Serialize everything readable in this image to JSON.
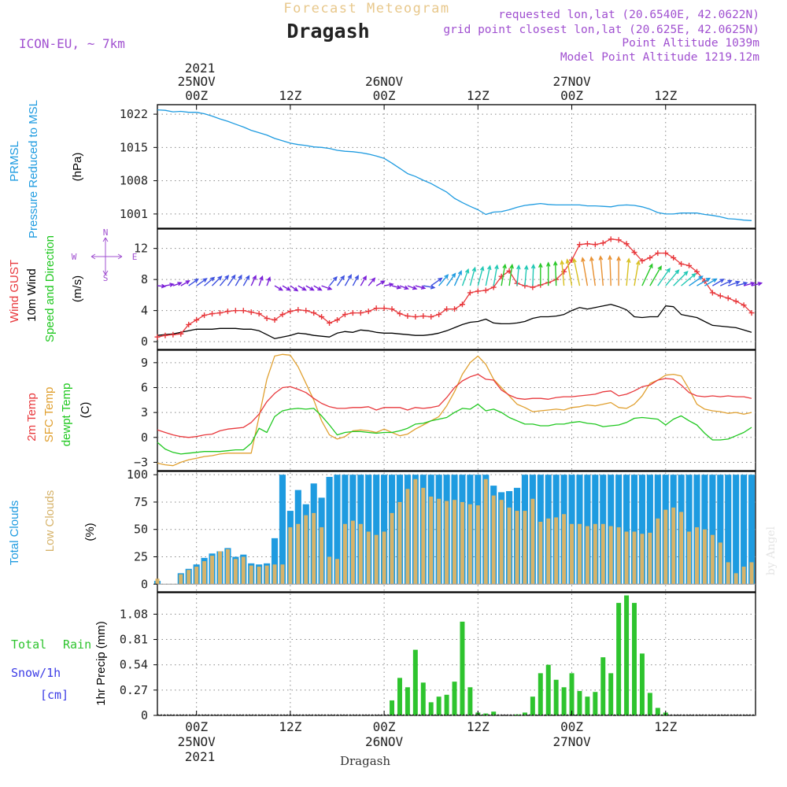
{
  "header": {
    "subtitle": "Forecast Meteogram",
    "title": "Dragash",
    "model": "ICON-EU, ~ 7km",
    "requested": "requested lon,lat (20.6540E, 42.0622N)",
    "grid_point": "grid point closest lon,lat (20.625E, 42.0625N)",
    "point_altitude": "Point Altitude 1039m",
    "model_altitude": "Model Point Altitude 1219.12m",
    "watermark": "by Angel",
    "footer_name": "Dragash"
  },
  "time_axis": {
    "year": "2021",
    "top_ticks": [
      {
        "hours": 0,
        "top": "25NOV",
        "bottom": "00Z"
      },
      {
        "hours": 12,
        "top": "",
        "bottom": "12Z"
      },
      {
        "hours": 24,
        "top": "26NOV",
        "bottom": "00Z"
      },
      {
        "hours": 36,
        "top": "",
        "bottom": "12Z"
      },
      {
        "hours": 48,
        "top": "27NOV",
        "bottom": "00Z"
      },
      {
        "hours": 60,
        "top": "",
        "bottom": "12Z"
      }
    ],
    "bottom_ticks": [
      {
        "hours": 0,
        "top": "00Z",
        "bottom": "25NOV"
      },
      {
        "hours": 12,
        "top": "12Z",
        "bottom": ""
      },
      {
        "hours": 24,
        "top": "00Z",
        "bottom": "26NOV"
      },
      {
        "hours": 36,
        "top": "12Z",
        "bottom": ""
      },
      {
        "hours": 48,
        "top": "00Z",
        "bottom": "27NOV"
      },
      {
        "hours": 60,
        "top": "12Z",
        "bottom": ""
      }
    ],
    "range_hours": [
      -5,
      71.5
    ]
  },
  "panel_labels": {
    "pressure": {
      "line1": "PRMSL",
      "line2": "Pressure Reduced to MSL",
      "unit": "(hPa)"
    },
    "wind": {
      "gust": "Wind GUST",
      "wind10": "10m Wind",
      "speed": "Speed and Direction",
      "unit": "(m/s)",
      "compass": {
        "w": "W",
        "e": "E",
        "n": "N",
        "s": "S"
      }
    },
    "temp": {
      "t2m": "2m Temp",
      "sfc": "SFC Temp",
      "dew": "dewpt Temp",
      "unit": "(C)"
    },
    "clouds": {
      "total": "Total Clouds",
      "low": "Low Clouds",
      "unit": "(%)"
    },
    "precip": {
      "rain_a": "Total",
      "rain_b": "Rain",
      "snow": "Snow/1h",
      "snow_unit": "[cm]",
      "axis": "1hr Precip (mm)"
    }
  },
  "colors": {
    "pressure": "#1e9be0",
    "gust": "#e8383c",
    "wind": "#000000",
    "t2m": "#e8383c",
    "sfc": "#e0a030",
    "dew": "#20c820",
    "total_clouds": "#1e9be0",
    "low_clouds": "#d6b36a",
    "rain": "#2ec42e",
    "snow": "#3c3ce6",
    "purple": "#a050d0",
    "header_yellow": "#e8c88c"
  },
  "chart_data": [
    {
      "type": "line",
      "name": "pressure",
      "ylim": [
        998,
        1024
      ],
      "yticks": [
        1001,
        1008,
        1015,
        1022
      ],
      "x": [
        -5,
        -4,
        -3,
        -2,
        -1,
        0,
        1,
        2,
        3,
        4,
        5,
        6,
        7,
        8,
        9,
        10,
        11,
        12,
        13,
        14,
        15,
        16,
        17,
        18,
        19,
        20,
        21,
        22,
        23,
        24,
        25,
        26,
        27,
        28,
        29,
        30,
        31,
        32,
        33,
        34,
        35,
        36,
        37,
        38,
        39,
        40,
        41,
        42,
        43,
        44,
        45,
        46,
        47,
        48,
        49,
        50,
        51,
        52,
        53,
        54,
        55,
        56,
        57,
        58,
        59,
        60,
        61,
        62,
        63,
        64,
        65,
        66,
        67,
        68,
        69,
        70,
        71
      ],
      "y": [
        1022.9,
        1022.8,
        1022.5,
        1022.6,
        1022.4,
        1022.4,
        1022.1,
        1021.6,
        1021.0,
        1020.5,
        1019.9,
        1019.3,
        1018.6,
        1018.1,
        1017.6,
        1016.9,
        1016.4,
        1015.9,
        1015.6,
        1015.4,
        1015.1,
        1015.0,
        1014.8,
        1014.4,
        1014.2,
        1014.1,
        1013.9,
        1013.6,
        1013.2,
        1012.7,
        1011.7,
        1010.6,
        1009.5,
        1008.9,
        1008.1,
        1007.4,
        1006.5,
        1005.6,
        1004.3,
        1003.4,
        1002.6,
        1001.9,
        1000.9,
        1001.4,
        1001.5,
        1001.9,
        1002.4,
        1002.8,
        1003.0,
        1003.2,
        1003.0,
        1002.9,
        1002.9,
        1002.9,
        1002.9,
        1002.7,
        1002.7,
        1002.6,
        1002.5,
        1002.8,
        1002.9,
        1002.8,
        1002.5,
        1002.0,
        1001.3,
        1001.0,
        1001.0,
        1001.2,
        1001.2,
        1001.2,
        1000.9,
        1000.7,
        1000.4,
        1000.0,
        999.9,
        999.7,
        999.6
      ]
    },
    {
      "type": "line",
      "name": "wind",
      "ylim": [
        -1,
        14.5
      ],
      "yticks": [
        0,
        4,
        8,
        12
      ],
      "x": [
        -5,
        -4,
        -3,
        -2,
        -1,
        0,
        1,
        2,
        3,
        4,
        5,
        6,
        7,
        8,
        9,
        10,
        11,
        12,
        13,
        14,
        15,
        16,
        17,
        18,
        19,
        20,
        21,
        22,
        23,
        24,
        25,
        26,
        27,
        28,
        29,
        30,
        31,
        32,
        33,
        34,
        35,
        36,
        37,
        38,
        39,
        40,
        41,
        42,
        43,
        44,
        45,
        46,
        47,
        48,
        49,
        50,
        51,
        52,
        53,
        54,
        55,
        56,
        57,
        58,
        59,
        60,
        61,
        62,
        63,
        64,
        65,
        66,
        67,
        68,
        69,
        70,
        71
      ],
      "gust": [
        0.6,
        0.8,
        0.9,
        1.0,
        2.2,
        2.8,
        3.4,
        3.6,
        3.7,
        3.9,
        4.0,
        4.0,
        3.8,
        3.6,
        3.0,
        2.8,
        3.5,
        3.9,
        4.1,
        4.0,
        3.7,
        3.2,
        2.4,
        2.8,
        3.5,
        3.7,
        3.7,
        3.9,
        4.3,
        4.3,
        4.2,
        3.6,
        3.3,
        3.2,
        3.3,
        3.2,
        3.5,
        4.2,
        4.2,
        4.8,
        6.3,
        6.5,
        6.6,
        7.0,
        8.4,
        9.1,
        7.5,
        7.2,
        7.0,
        7.3,
        7.6,
        8.0,
        9.0,
        10.5,
        12.5,
        12.6,
        12.5,
        12.7,
        13.2,
        13.1,
        12.6,
        11.5,
        10.4,
        10.8,
        11.4,
        11.4,
        10.8,
        10.0,
        9.8,
        9.0,
        7.8,
        6.3,
        5.9,
        5.6,
        5.2,
        4.7,
        3.7
      ],
      "wind10": [
        0.8,
        0.9,
        1.0,
        1.2,
        1.4,
        1.6,
        1.6,
        1.6,
        1.7,
        1.7,
        1.7,
        1.6,
        1.6,
        1.4,
        0.9,
        0.4,
        0.6,
        0.8,
        1.1,
        1.0,
        0.8,
        0.7,
        0.6,
        1.1,
        1.3,
        1.2,
        1.5,
        1.4,
        1.2,
        1.1,
        1.1,
        1.0,
        0.9,
        0.8,
        0.8,
        0.9,
        1.1,
        1.4,
        1.8,
        2.2,
        2.5,
        2.6,
        2.9,
        2.4,
        2.3,
        2.3,
        2.4,
        2.6,
        3.0,
        3.2,
        3.2,
        3.3,
        3.5,
        4.0,
        4.4,
        4.2,
        4.4,
        4.6,
        4.8,
        4.5,
        4.1,
        3.2,
        3.1,
        3.2,
        3.2,
        4.6,
        4.5,
        3.5,
        3.3,
        3.1,
        2.6,
        2.1,
        2.0,
        1.9,
        1.8,
        1.5,
        1.2
      ],
      "arrow_speed": [
        1.2,
        1.4,
        1.6,
        2.0,
        2.6,
        3.0,
        3.2,
        3.3,
        3.3,
        3.1,
        2.8,
        2.6,
        2.4,
        2.0,
        1.6,
        1.6,
        1.6,
        1.6,
        1.6,
        1.6,
        1.6,
        2.2,
        2.6,
        2.8,
        3.0,
        2.6,
        2.4,
        2.0,
        1.8,
        1.6,
        1.6,
        1.6,
        1.8,
        2.0,
        2.6,
        3.3,
        3.7,
        4.0,
        4.5,
        5.0,
        5.5,
        5.8,
        6.1,
        6.3,
        6.6,
        6.5,
        6.1,
        6.0,
        6.4,
        6.8,
        7.2,
        7.6,
        8.0,
        8.6,
        9.0,
        9.3,
        9.5,
        9.8,
        9.9,
        9.5,
        8.8,
        8.0,
        7.5,
        7.0,
        6.4,
        6.2,
        6.0,
        5.5,
        4.6,
        4.0,
        3.5,
        3.2,
        3.0,
        2.8,
        2.6,
        2.4,
        2.2
      ],
      "arrow_dir_deg": [
        95,
        80,
        70,
        60,
        55,
        55,
        50,
        45,
        40,
        35,
        30,
        30,
        25,
        20,
        20,
        120,
        120,
        125,
        120,
        120,
        120,
        110,
        40,
        35,
        30,
        28,
        30,
        40,
        60,
        80,
        105,
        110,
        110,
        105,
        100,
        55,
        40,
        35,
        25,
        20,
        15,
        15,
        12,
        10,
        10,
        8,
        5,
        5,
        2,
        0,
        0,
        358,
        355,
        350,
        348,
        350,
        352,
        355,
        358,
        0,
        5,
        10,
        25,
        30,
        35,
        40,
        45,
        50,
        55,
        60,
        60,
        60,
        65,
        70,
        75,
        75,
        75
      ]
    },
    {
      "type": "line",
      "name": "temperature",
      "ylim": [
        -4,
        10.5
      ],
      "yticks": [
        -3,
        0,
        3,
        6,
        9
      ],
      "x": [
        -5,
        -4,
        -3,
        -2,
        -1,
        0,
        1,
        2,
        3,
        4,
        5,
        6,
        7,
        8,
        9,
        10,
        11,
        12,
        13,
        14,
        15,
        16,
        17,
        18,
        19,
        20,
        21,
        22,
        23,
        24,
        25,
        26,
        27,
        28,
        29,
        30,
        31,
        32,
        33,
        34,
        35,
        36,
        37,
        38,
        39,
        40,
        41,
        42,
        43,
        44,
        45,
        46,
        47,
        48,
        49,
        50,
        51,
        52,
        53,
        54,
        55,
        56,
        57,
        58,
        59,
        60,
        61,
        62,
        63,
        64,
        65,
        66,
        67,
        68,
        69,
        70,
        71
      ],
      "t2m": [
        0.9,
        0.6,
        0.3,
        0.1,
        0.0,
        0.1,
        0.3,
        0.4,
        0.8,
        1.0,
        1.1,
        1.2,
        1.8,
        2.8,
        4.3,
        5.3,
        6.0,
        6.1,
        5.8,
        5.4,
        4.7,
        4.1,
        3.7,
        3.5,
        3.5,
        3.6,
        3.6,
        3.7,
        3.3,
        3.6,
        3.6,
        3.6,
        3.3,
        3.6,
        3.5,
        3.6,
        3.8,
        4.8,
        6.0,
        6.8,
        7.3,
        7.6,
        7.0,
        6.9,
        5.7,
        5.1,
        4.7,
        4.6,
        4.7,
        4.7,
        4.6,
        4.8,
        4.9,
        4.9,
        5.0,
        5.1,
        5.2,
        5.5,
        5.6,
        5.0,
        5.2,
        5.6,
        6.1,
        6.3,
        6.9,
        7.1,
        7.0,
        6.3,
        5.4,
        5.0,
        4.9,
        5.0,
        4.9,
        5.0,
        4.9,
        4.9,
        4.7
      ],
      "sfc": [
        -3.1,
        -3.3,
        -3.4,
        -3.0,
        -2.7,
        -2.5,
        -2.3,
        -2.2,
        -2.0,
        -1.9,
        -1.9,
        -1.9,
        -1.9,
        2.5,
        7.0,
        9.8,
        10.0,
        9.9,
        8.5,
        6.5,
        4.5,
        2.0,
        0.3,
        -0.2,
        0.1,
        0.8,
        0.9,
        0.8,
        0.6,
        1.0,
        0.6,
        0.2,
        0.4,
        1.0,
        1.5,
        2.0,
        2.5,
        3.8,
        5.5,
        7.6,
        9.0,
        9.8,
        8.8,
        7.0,
        6.0,
        5.0,
        4.0,
        3.6,
        3.1,
        3.2,
        3.3,
        3.4,
        3.3,
        3.6,
        3.7,
        3.9,
        3.8,
        4.0,
        4.2,
        3.6,
        3.5,
        4.0,
        5.0,
        6.5,
        6.9,
        7.5,
        7.6,
        7.4,
        5.8,
        4.0,
        3.4,
        3.2,
        3.1,
        2.9,
        3.0,
        2.8,
        3.0
      ],
      "dew": [
        -0.6,
        -1.4,
        -1.8,
        -2.0,
        -1.9,
        -1.8,
        -1.7,
        -1.7,
        -1.7,
        -1.6,
        -1.5,
        -1.5,
        -0.7,
        1.1,
        0.6,
        2.5,
        3.2,
        3.4,
        3.5,
        3.4,
        3.5,
        2.6,
        1.5,
        0.3,
        0.6,
        0.7,
        0.7,
        0.6,
        0.5,
        0.6,
        0.6,
        0.8,
        1.1,
        1.6,
        1.7,
        2.0,
        2.2,
        2.4,
        3.0,
        3.5,
        3.4,
        4.0,
        3.2,
        3.4,
        3.0,
        2.4,
        2.0,
        1.6,
        1.6,
        1.4,
        1.4,
        1.6,
        1.6,
        1.8,
        1.9,
        1.7,
        1.6,
        1.3,
        1.4,
        1.5,
        1.8,
        2.3,
        2.4,
        2.3,
        2.2,
        1.5,
        2.2,
        2.6,
        2.0,
        1.5,
        0.5,
        -0.3,
        -0.3,
        -0.2,
        0.2,
        0.6,
        1.2
      ]
    },
    {
      "type": "bar",
      "name": "clouds",
      "ylim": [
        -7,
        103
      ],
      "yticks": [
        0,
        25,
        50,
        75,
        100
      ],
      "x": [
        -5,
        -4,
        -3,
        -2,
        -1,
        0,
        1,
        2,
        3,
        4,
        5,
        6,
        7,
        8,
        9,
        10,
        11,
        12,
        13,
        14,
        15,
        16,
        17,
        18,
        19,
        20,
        21,
        22,
        23,
        24,
        25,
        26,
        27,
        28,
        29,
        30,
        31,
        32,
        33,
        34,
        35,
        36,
        37,
        38,
        39,
        40,
        41,
        42,
        43,
        44,
        45,
        46,
        47,
        48,
        49,
        50,
        51,
        52,
        53,
        54,
        55,
        56,
        57,
        58,
        59,
        60,
        61,
        62,
        63,
        64,
        65,
        66,
        67,
        68,
        69,
        70,
        71
      ],
      "total": [
        3,
        0,
        0,
        10,
        14,
        18,
        24,
        28,
        30,
        33,
        25,
        27,
        19,
        18,
        19,
        42,
        100,
        67,
        86,
        73,
        92,
        79,
        98,
        100,
        100,
        100,
        100,
        100,
        100,
        100,
        100,
        100,
        100,
        100,
        100,
        100,
        100,
        100,
        100,
        100,
        100,
        100,
        100,
        90,
        84,
        85,
        88,
        100,
        100,
        100,
        100,
        100,
        100,
        100,
        100,
        100,
        100,
        100,
        100,
        100,
        100,
        100,
        100,
        100,
        100,
        100,
        100,
        100,
        100,
        100,
        100,
        100,
        100,
        100,
        100,
        100,
        100
      ],
      "low": [
        5,
        0,
        0,
        9,
        13,
        16,
        21,
        26,
        30,
        32,
        23,
        25,
        17,
        16,
        17,
        18,
        18,
        52,
        55,
        63,
        65,
        52,
        25,
        23,
        55,
        58,
        55,
        48,
        45,
        48,
        65,
        75,
        87,
        96,
        88,
        80,
        78,
        76,
        77,
        75,
        73,
        72,
        96,
        81,
        77,
        70,
        67,
        67,
        78,
        57,
        60,
        61,
        64,
        55,
        55,
        53,
        55,
        55,
        53,
        52,
        48,
        48,
        46,
        47,
        60,
        68,
        70,
        66,
        48,
        52,
        50,
        45,
        38,
        20,
        10,
        16,
        20
      ]
    },
    {
      "type": "bar",
      "name": "precip",
      "ylim": [
        0,
        1.31
      ],
      "yticks": [
        0,
        0.27,
        0.54,
        0.81,
        1.08
      ],
      "x": [
        -5,
        -4,
        -3,
        -2,
        -1,
        0,
        1,
        2,
        3,
        4,
        5,
        6,
        7,
        8,
        9,
        10,
        11,
        12,
        13,
        14,
        15,
        16,
        17,
        18,
        19,
        20,
        21,
        22,
        23,
        24,
        25,
        26,
        27,
        28,
        29,
        30,
        31,
        32,
        33,
        34,
        35,
        36,
        37,
        38,
        39,
        40,
        41,
        42,
        43,
        44,
        45,
        46,
        47,
        48,
        49,
        50,
        51,
        52,
        53,
        54,
        55,
        56,
        57,
        58,
        59,
        60,
        61,
        62,
        63,
        64,
        65,
        66,
        67,
        68,
        69,
        70,
        71
      ],
      "rain": [
        0,
        0,
        0,
        0,
        0,
        0,
        0,
        0,
        0,
        0,
        0,
        0,
        0,
        0,
        0,
        0,
        0,
        0,
        0,
        0,
        0,
        0,
        0,
        0,
        0,
        0,
        0,
        0,
        0,
        0,
        0.16,
        0.4,
        0.3,
        0.7,
        0.35,
        0.14,
        0.2,
        0.22,
        0.36,
        1.0,
        0.3,
        0.03,
        0.02,
        0.04,
        0.0,
        0.0,
        0.01,
        0.03,
        0.2,
        0.45,
        0.54,
        0.38,
        0.3,
        0.45,
        0.26,
        0.2,
        0.25,
        0.62,
        0.45,
        1.2,
        1.28,
        1.2,
        0.66,
        0.24,
        0.08,
        0.03,
        0.0,
        0.0,
        0.0,
        0.0,
        0.0,
        0.0,
        0.0,
        0.0,
        0.0,
        0.0,
        0.0
      ]
    }
  ]
}
